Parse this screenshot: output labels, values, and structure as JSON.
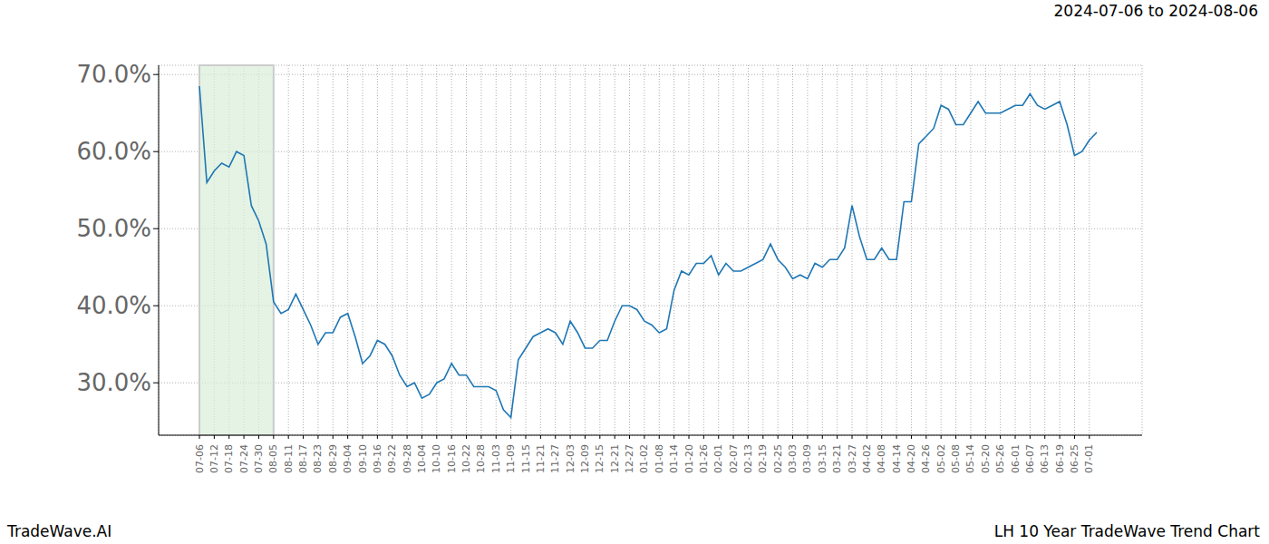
{
  "chart_data": {
    "type": "line",
    "title": "2024-07-06 to 2024-08-06",
    "annotations": [
      "TradeWave.AI",
      "LH 10 Year TradeWave Trend Chart"
    ],
    "categories": [
      "07-06",
      null,
      "07-12",
      null,
      "07-18",
      null,
      "07-24",
      null,
      "07-30",
      null,
      "08-05",
      null,
      "08-11",
      null,
      "08-17",
      null,
      "08-23",
      null,
      "08-29",
      null,
      "09-04",
      null,
      "09-10",
      null,
      "09-16",
      null,
      "09-22",
      null,
      "09-28",
      null,
      "10-04",
      null,
      "10-10",
      null,
      "10-16",
      null,
      "10-22",
      null,
      "10-28",
      null,
      "11-03",
      null,
      "11-09",
      null,
      "11-15",
      null,
      "11-21",
      null,
      "11-27",
      null,
      "12-03",
      null,
      "12-09",
      null,
      "12-15",
      null,
      "12-21",
      null,
      "12-27",
      null,
      "01-02",
      null,
      "01-08",
      null,
      "01-14",
      null,
      "01-20",
      null,
      "01-26",
      null,
      "02-01",
      null,
      "02-07",
      null,
      "02-13",
      null,
      "02-19",
      null,
      "02-25",
      null,
      "03-03",
      null,
      "03-09",
      null,
      "03-15",
      null,
      "03-21",
      null,
      "03-27",
      null,
      "04-02",
      null,
      "04-08",
      null,
      "04-14",
      null,
      "04-20",
      null,
      "04-26",
      null,
      "05-02",
      null,
      "05-08",
      null,
      "05-14",
      null,
      "05-20",
      null,
      "05-26",
      null,
      "06-01",
      null,
      "06-07",
      null,
      "06-13",
      null,
      "06-19",
      null,
      "06-25",
      null,
      "07-01",
      null
    ],
    "values": [
      68.5,
      56,
      57.5,
      58.5,
      58,
      60,
      59.5,
      53,
      51,
      48,
      40.5,
      39,
      39.5,
      41.5,
      39.5,
      37.5,
      35,
      36.5,
      36.5,
      38.5,
      39,
      36,
      32.5,
      33.5,
      35.5,
      35,
      33.5,
      31,
      29.5,
      30,
      28,
      28.5,
      30,
      30.5,
      32.5,
      31,
      31,
      29.5,
      29.5,
      29.5,
      29,
      26.5,
      25.5,
      33,
      34.5,
      36,
      36.5,
      37,
      36.5,
      35,
      38,
      36.5,
      34.5,
      34.5,
      35.5,
      35.5,
      38,
      40,
      40,
      39.5,
      38,
      37.5,
      36.5,
      37,
      42,
      44.5,
      44,
      45.5,
      45.5,
      46.5,
      44,
      45.5,
      44.5,
      44.5,
      45,
      45.5,
      46,
      48,
      46,
      45,
      43.5,
      44,
      43.5,
      45.5,
      45,
      46,
      46,
      47.5,
      53,
      49,
      46,
      46,
      47.5,
      46,
      46,
      53.5,
      53.5,
      61,
      62,
      63,
      66,
      65.5,
      63.5,
      63.5,
      65,
      66.5,
      65,
      65,
      65,
      65.5,
      66,
      66,
      67.5,
      66,
      65.5,
      66,
      66.5,
      63.5,
      59.5,
      60,
      61.5,
      62.5
    ],
    "color": "#1f77b4",
    "ylim": [
      23.2,
      71.2
    ],
    "yticks": [
      {
        "value": 30,
        "label": "30.0%"
      },
      {
        "value": 40,
        "label": "40.0%"
      },
      {
        "value": 50,
        "label": "50.0%"
      },
      {
        "value": 60,
        "label": "60.0%"
      },
      {
        "value": 70,
        "label": "70.0%"
      }
    ],
    "grid": true,
    "highlight": {
      "start": "07-06",
      "end": "08-05"
    }
  }
}
